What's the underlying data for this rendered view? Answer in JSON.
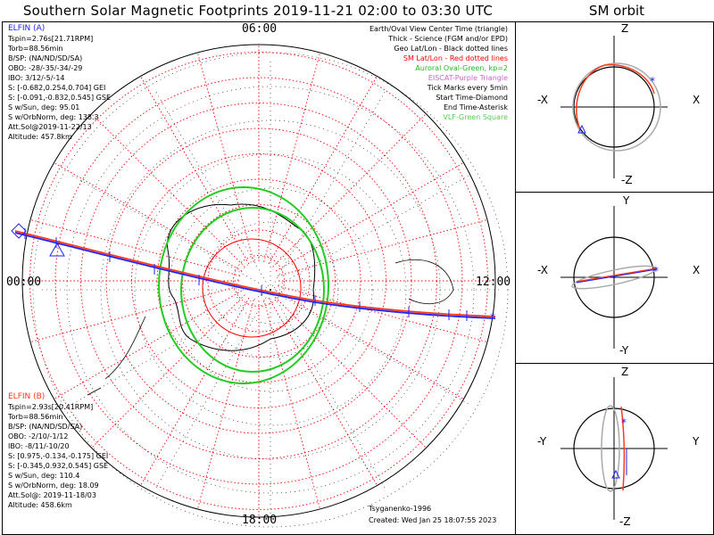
{
  "title": "Southern Solar Magnetic Footprints 2019-11-21 02:00 to 03:30 UTC",
  "orbit_title": "SM orbit",
  "hour_labels": {
    "top": "06:00",
    "left": "00:00",
    "right": "12:00",
    "bottom": "18:00"
  },
  "elfin_a": {
    "name": "ELFIN (A)",
    "color": "#2222ff",
    "lines": [
      "Tspin=2.76s[21.71RPM]",
      "Torb=88.56min",
      "B/SP: (NA/ND/SD/SA)",
      "OBO: -28/-35/-34/-29",
      "IBO: 3/12/-5/-14",
      "S: [-0.682,0.254,0.704] GEI",
      "S: [-0.091,-0.832,0.545] GSE",
      "S w/Sun, deg: 95.01",
      "S w/OrbNorm, deg: 138.3",
      "Att.Sol@2019-11-22/13",
      "Altitude: 457.8km"
    ]
  },
  "elfin_b": {
    "name": "ELFIN (B)",
    "color": "#ff3a1a",
    "lines": [
      "Tspin=2.93s[20.41RPM]",
      "Torb=88.56min",
      "B/SP: (NA/ND/SD/SA)",
      "OBO: -2/10/-1/12",
      "IBO: -8/11/-10/20",
      "S: [0.975,-0.134,-0.175] GEI",
      "S: [-0.345,0.932,0.545] GSE",
      "S w/Sun, deg: 110.4",
      "S w/OrbNorm, deg: 18.09",
      "Att.Sol@: 2019-11-18/03",
      "Altitude: 458.6km"
    ]
  },
  "legend": [
    {
      "text": "Earth/Oval View Center Time (triangle)",
      "color": "#000000"
    },
    {
      "text": "Thick - Science (FGM and/or EPD)",
      "color": "#000000"
    },
    {
      "text": "Geo Lat/Lon - Black dotted lines",
      "color": "#000000"
    },
    {
      "text": "SM Lat/Lon - Red dotted lines",
      "color": "#ff0000"
    },
    {
      "text": "Auroral Oval-Green, kp=2",
      "color": "#22bb22"
    },
    {
      "text": "EISCAT-Purple Triangle",
      "color": "#cc66cc"
    },
    {
      "text": "Tick Marks every 5min",
      "color": "#000000"
    },
    {
      "text": "Start Time-Diamond",
      "color": "#000000"
    },
    {
      "text": "End Time-Asterisk",
      "color": "#000000"
    },
    {
      "text": "VLF-Green Square",
      "color": "#55cc55"
    }
  ],
  "footer": {
    "model": "Tsyganenko-1996",
    "created": "Created: Wed Jan 25 18:07:55 2023"
  },
  "orbit_panels": [
    {
      "top": "Z",
      "bottom": "-Z",
      "left": "-X",
      "right": "X"
    },
    {
      "top": "Y",
      "bottom": "-Y",
      "left": "-X",
      "right": "X"
    },
    {
      "top": "Z",
      "bottom": "-Z",
      "left": "-Y",
      "right": "Y"
    }
  ],
  "colors": {
    "track_a": "#2222ff",
    "track_b": "#ff3a1a",
    "oval": "#22cc22",
    "sm_grid": "#ff0000",
    "geo_grid": "#000000"
  }
}
